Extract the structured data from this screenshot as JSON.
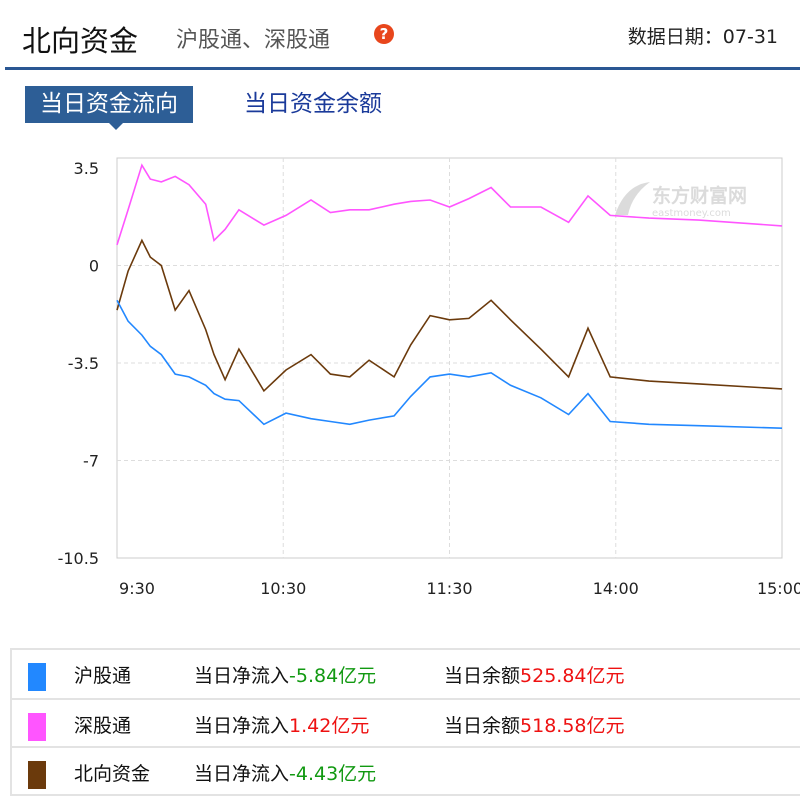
{
  "header": {
    "title": "北向资金",
    "subtitle": "沪股通、深股通",
    "help_icon": "question-icon",
    "date_label": "数据日期：",
    "date": "07-31"
  },
  "tabs": [
    {
      "label": "当日资金流向",
      "active": true
    },
    {
      "label": "当日资金余额",
      "active": false
    }
  ],
  "watermark": "东方财富网 eastmoney.com",
  "chart_data": {
    "type": "line",
    "yticks": [
      "3.5",
      "0",
      "-3.5",
      "-7",
      "-10.5"
    ],
    "ylim": [
      -10.5,
      3.5
    ],
    "xticks": [
      "9:30",
      "10:30",
      "11:30",
      "14:00",
      "15:00"
    ],
    "grid": true,
    "x": [
      "9:30",
      "9:34",
      "9:39",
      "9:42",
      "9:46",
      "9:51",
      "9:56",
      "10:02",
      "10:05",
      "10:09",
      "10:14",
      "10:23",
      "10:31",
      "10:40",
      "10:47",
      "10:54",
      "11:01",
      "11:10",
      "11:16",
      "11:23",
      "11:30",
      "13:07",
      "13:15",
      "13:22",
      "13:33",
      "13:43",
      "13:50",
      "13:58",
      "14:12",
      "14:30",
      "15:00"
    ],
    "series": [
      {
        "name": "深股通",
        "color": "#ff55ff",
        "values": [
          0.74,
          2.0,
          3.6,
          3.1,
          3.0,
          3.2,
          2.9,
          2.2,
          0.9,
          1.3,
          2.0,
          1.45,
          1.8,
          2.35,
          1.9,
          2.0,
          2.0,
          2.2,
          2.3,
          2.35,
          2.1,
          2.4,
          2.8,
          2.1,
          2.1,
          1.55,
          2.5,
          1.8,
          1.7,
          1.63,
          1.42
        ]
      },
      {
        "name": "北向资金",
        "color": "#6b3a0c",
        "values": [
          -1.6,
          -0.2,
          0.9,
          0.3,
          0,
          -1.6,
          -0.9,
          -2.3,
          -3.2,
          -4.1,
          -3.0,
          -4.5,
          -3.75,
          -3.2,
          -3.9,
          -4.0,
          -3.4,
          -4.0,
          -2.85,
          -1.8,
          -1.95,
          -1.9,
          -1.25,
          -1.95,
          -3.0,
          -4.0,
          -2.25,
          -4.0,
          -4.15,
          -4.25,
          -4.43
        ]
      },
      {
        "name": "沪股通",
        "color": "#2288ff",
        "values": [
          -1.25,
          -2.0,
          -2.5,
          -2.9,
          -3.2,
          -3.9,
          -4.0,
          -4.3,
          -4.6,
          -4.8,
          -4.85,
          -5.7,
          -5.3,
          -5.5,
          -5.6,
          -5.7,
          -5.55,
          -5.4,
          -4.7,
          -4.0,
          -3.9,
          -4.0,
          -3.85,
          -4.3,
          -4.75,
          -5.35,
          -4.6,
          -5.6,
          -5.7,
          -5.75,
          -5.84
        ]
      }
    ]
  },
  "legend": [
    {
      "name": "沪股通",
      "color": "#2288ff",
      "flow_label": "当日净流入",
      "flow": "-5.84亿元",
      "flow_color": "g",
      "bal_label": "当日余额",
      "bal": "525.84亿元"
    },
    {
      "name": "深股通",
      "color": "#ff55ff",
      "flow_label": "当日净流入",
      "flow": "1.42亿元",
      "flow_color": "r",
      "bal_label": "当日余额",
      "bal": "518.58亿元"
    },
    {
      "name": "北向资金",
      "color": "#6b3a0c",
      "flow_label": "当日净流入",
      "flow": "-4.43亿元",
      "flow_color": "g"
    }
  ]
}
